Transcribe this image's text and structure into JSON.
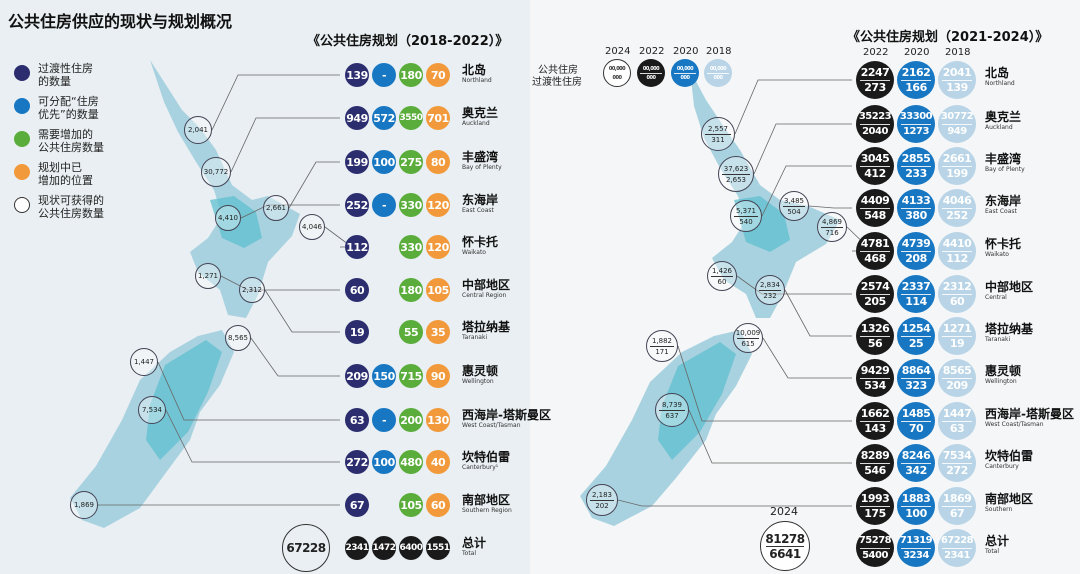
{
  "title": "公共住房供应的现状与规划概况",
  "left_panel": {
    "subtitle": "《公共住房规划（2018-2022）》",
    "legend": [
      {
        "label": "过渡性住房\n的数量",
        "color": "#2c2d6e"
      },
      {
        "label": "可分配“住房\n优先”的数量",
        "color": "#1877c2"
      },
      {
        "label": "需要增加的\n公共住房数量",
        "color": "#5aad3a"
      },
      {
        "label": "规划中已\n增加的位置",
        "color": "#f29a3b"
      },
      {
        "label": "现状可获得的\n公共住房数量",
        "color": "#ffffff"
      }
    ],
    "map_bubbles": [
      "2,041",
      "30,772",
      "2,661",
      "4,410",
      "4,046",
      "1,271",
      "2,312",
      "8,565",
      "1,447",
      "7,534",
      "1,869"
    ],
    "rows": [
      {
        "cn": "北岛",
        "en": "Northland",
        "v": [
          "139",
          "-",
          "180",
          "70"
        ]
      },
      {
        "cn": "奥克兰",
        "en": "Auckland",
        "v": [
          "949",
          "572",
          "3550",
          "701"
        ]
      },
      {
        "cn": "丰盛湾",
        "en": "Bay of Plenty",
        "v": [
          "199",
          "100",
          "275",
          "80"
        ]
      },
      {
        "cn": "东海岸",
        "en": "East Coast",
        "v": [
          "252",
          "-",
          "330",
          "120"
        ]
      },
      {
        "cn": "怀卡托",
        "en": "Waikato",
        "v": [
          "112",
          "",
          "330",
          "120"
        ]
      },
      {
        "cn": "中部地区",
        "en": "Central Region",
        "v": [
          "60",
          "",
          "180",
          "105"
        ]
      },
      {
        "cn": "塔拉纳基",
        "en": "Taranaki",
        "v": [
          "19",
          "",
          "55",
          "35"
        ]
      },
      {
        "cn": "惠灵顿",
        "en": "Wellington",
        "v": [
          "209",
          "150",
          "715",
          "90"
        ]
      },
      {
        "cn": "西海岸-塔斯曼区",
        "en": "West Coast/Tasman",
        "v": [
          "63",
          "-",
          "200",
          "130"
        ]
      },
      {
        "cn": "坎特伯雷",
        "en": "Canterbury¹",
        "v": [
          "272",
          "100",
          "480",
          "40"
        ]
      },
      {
        "cn": "南部地区",
        "en": "Southern Region",
        "v": [
          "67",
          "",
          "105",
          "60"
        ]
      }
    ],
    "total": {
      "cn": "总计",
      "en": "Total",
      "big": "67228",
      "v": [
        "2341",
        "1472",
        "6400",
        "1551"
      ]
    }
  },
  "right_panel": {
    "subtitle": "《公共住房规划（2021-2024）》",
    "key_labels": [
      "公共住房",
      "过渡性住房"
    ],
    "key_years": [
      "2024",
      "2022",
      "2020",
      "2018"
    ],
    "key_placeholder": [
      "00,000",
      "000"
    ],
    "col_years": [
      "2022",
      "2020",
      "2018"
    ],
    "map_bubbles": [
      {
        "a": "2,557",
        "b": "311"
      },
      {
        "a": "37,623",
        "b": "2,653"
      },
      {
        "a": "5,371",
        "b": "540"
      },
      {
        "a": "3,485",
        "b": "504"
      },
      {
        "a": "4,869",
        "b": "716"
      },
      {
        "a": "1,426",
        "b": "60"
      },
      {
        "a": "2,834",
        "b": "232"
      },
      {
        "a": "10,009",
        "b": "615"
      },
      {
        "a": "1,882",
        "b": "171"
      },
      {
        "a": "8,739",
        "b": "637"
      },
      {
        "a": "2,183",
        "b": "202"
      }
    ],
    "rows": [
      {
        "cn": "北岛",
        "en": "Northland",
        "v": [
          [
            "2247",
            "273"
          ],
          [
            "2162",
            "166"
          ],
          [
            "2041",
            "139"
          ]
        ]
      },
      {
        "cn": "奥克兰",
        "en": "Auckland",
        "v": [
          [
            "35223",
            "2040"
          ],
          [
            "33300",
            "1273"
          ],
          [
            "30772",
            "949"
          ]
        ]
      },
      {
        "cn": "丰盛湾",
        "en": "Bay of Plenty",
        "v": [
          [
            "3045",
            "412"
          ],
          [
            "2855",
            "233"
          ],
          [
            "2661",
            "199"
          ]
        ]
      },
      {
        "cn": "东海岸",
        "en": "East Coast",
        "v": [
          [
            "4409",
            "548"
          ],
          [
            "4133",
            "380"
          ],
          [
            "4046",
            "252"
          ]
        ]
      },
      {
        "cn": "怀卡托",
        "en": "Waikato",
        "v": [
          [
            "4781",
            "468"
          ],
          [
            "4739",
            "208"
          ],
          [
            "4410",
            "112"
          ]
        ]
      },
      {
        "cn": "中部地区",
        "en": "Central",
        "v": [
          [
            "2574",
            "205"
          ],
          [
            "2337",
            "114"
          ],
          [
            "2312",
            "60"
          ]
        ]
      },
      {
        "cn": "塔拉纳基",
        "en": "Taranaki",
        "v": [
          [
            "1326",
            "56"
          ],
          [
            "1254",
            "25"
          ],
          [
            "1271",
            "19"
          ]
        ]
      },
      {
        "cn": "惠灵顿",
        "en": "Wellington",
        "v": [
          [
            "9429",
            "534"
          ],
          [
            "8864",
            "323"
          ],
          [
            "8565",
            "209"
          ]
        ]
      },
      {
        "cn": "西海岸-塔斯曼区",
        "en": "West Coast/Tasman",
        "v": [
          [
            "1662",
            "143"
          ],
          [
            "1485",
            "70"
          ],
          [
            "1447",
            "63"
          ]
        ]
      },
      {
        "cn": "坎特伯雷",
        "en": "Canterbury",
        "v": [
          [
            "8289",
            "546"
          ],
          [
            "8246",
            "342"
          ],
          [
            "7534",
            "272"
          ]
        ]
      },
      {
        "cn": "南部地区",
        "en": "Southern",
        "v": [
          [
            "1993",
            "175"
          ],
          [
            "1883",
            "100"
          ],
          [
            "1869",
            "67"
          ]
        ]
      }
    ],
    "total": {
      "cn": "总计",
      "en": "Total",
      "year": "2024",
      "big": [
        "81278",
        "6641"
      ],
      "v": [
        [
          "75278",
          "5400"
        ],
        [
          "71319",
          "3234"
        ],
        [
          "67228",
          "2341"
        ]
      ]
    }
  },
  "colors": {
    "navy": "#2c2d6e",
    "blue": "#1877c2",
    "green": "#5aad3a",
    "orange": "#f29a3b",
    "black": "#1a1a1a",
    "lightblue": "#b8d4e6",
    "teal": "#5fbfcf",
    "land": "#a9d2e0"
  }
}
